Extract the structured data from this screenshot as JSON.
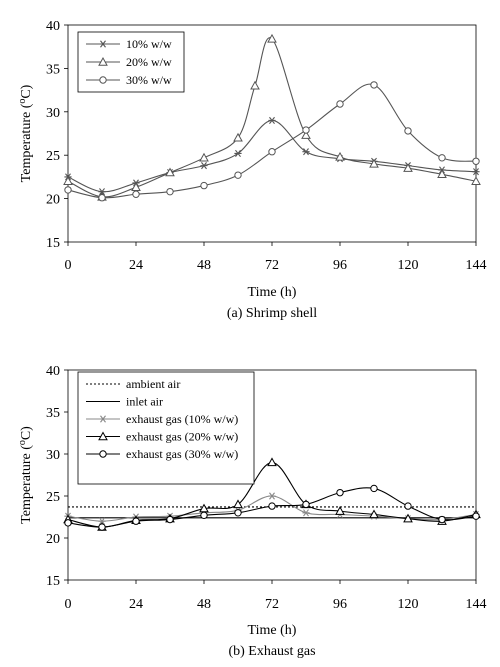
{
  "chart_data": [
    {
      "type": "line",
      "caption": "(a) Shrimp shell",
      "xlabel": "Time (h)",
      "ylabel": "Temperature (°C)",
      "xlim": [
        0,
        144
      ],
      "ylim": [
        15,
        40
      ],
      "xticks": [
        0,
        24,
        48,
        72,
        96,
        120,
        144
      ],
      "yticks": [
        15,
        20,
        25,
        30,
        35,
        40
      ],
      "grid": false,
      "legend_position": "top-left",
      "series": [
        {
          "name": "10% w/w",
          "marker": "star",
          "color": "#555555",
          "x": [
            0,
            12,
            24,
            36,
            48,
            60,
            72,
            84,
            96,
            108,
            120,
            132,
            144
          ],
          "y": [
            22.5,
            20.8,
            21.8,
            23.0,
            23.8,
            25.2,
            29.0,
            25.4,
            24.6,
            24.3,
            23.8,
            23.3,
            23.1
          ]
        },
        {
          "name": "20% w/w",
          "marker": "triangle",
          "color": "#555555",
          "x": [
            0,
            12,
            24,
            36,
            48,
            60,
            66,
            72,
            84,
            96,
            108,
            120,
            132,
            144
          ],
          "y": [
            22.0,
            20.2,
            21.3,
            23.0,
            24.7,
            27.0,
            33.0,
            38.4,
            27.3,
            24.8,
            24.0,
            23.5,
            22.8,
            22.0
          ]
        },
        {
          "name": "30% w/w",
          "marker": "circle",
          "color": "#555555",
          "x": [
            0,
            12,
            24,
            36,
            48,
            60,
            72,
            84,
            96,
            108,
            120,
            132,
            144
          ],
          "y": [
            21.0,
            20.1,
            20.5,
            20.8,
            21.5,
            22.7,
            25.4,
            27.9,
            30.9,
            33.1,
            27.8,
            24.7,
            24.3
          ]
        }
      ]
    },
    {
      "type": "line",
      "caption": "(b) Exhaust gas",
      "xlabel": "Time (h)",
      "ylabel": "Temperature (°C)",
      "xlim": [
        0,
        144
      ],
      "ylim": [
        15,
        40
      ],
      "xticks": [
        0,
        24,
        48,
        72,
        96,
        120,
        144
      ],
      "yticks": [
        15,
        20,
        25,
        30,
        35,
        40
      ],
      "grid": false,
      "legend_position": "top-left",
      "series": [
        {
          "name": "ambient air",
          "marker": "none",
          "style": "dotted",
          "color": "#000000",
          "x": [
            0,
            144
          ],
          "y": [
            23.7,
            23.7
          ]
        },
        {
          "name": "inlet air",
          "marker": "none",
          "style": "solid",
          "color": "#000000",
          "x": [
            0,
            144
          ],
          "y": [
            22.4,
            22.4
          ]
        },
        {
          "name": "exhaust gas (10% w/w)",
          "marker": "star",
          "color": "#888888",
          "x": [
            0,
            12,
            24,
            36,
            48,
            60,
            72,
            84,
            96,
            108,
            120,
            132,
            144
          ],
          "y": [
            22.6,
            22.0,
            22.5,
            22.6,
            23.0,
            23.3,
            25.0,
            23.0,
            22.8,
            22.6,
            22.3,
            22.2,
            22.8
          ]
        },
        {
          "name": "exhaust gas (20% w/w)",
          "marker": "triangle",
          "color": "#000000",
          "x": [
            0,
            12,
            24,
            36,
            48,
            60,
            72,
            84,
            96,
            108,
            120,
            132,
            144
          ],
          "y": [
            22.2,
            21.3,
            22.1,
            22.3,
            23.5,
            24.0,
            29.0,
            24.0,
            23.2,
            22.8,
            22.3,
            22.0,
            22.8
          ]
        },
        {
          "name": "exhaust gas (30% w/w)",
          "marker": "circle",
          "color": "#000000",
          "x": [
            0,
            12,
            24,
            36,
            48,
            60,
            72,
            84,
            96,
            108,
            120,
            132,
            144
          ],
          "y": [
            21.8,
            21.3,
            22.0,
            22.2,
            22.7,
            23.0,
            23.8,
            24.0,
            25.4,
            25.9,
            23.8,
            22.2,
            22.6
          ]
        }
      ]
    }
  ]
}
